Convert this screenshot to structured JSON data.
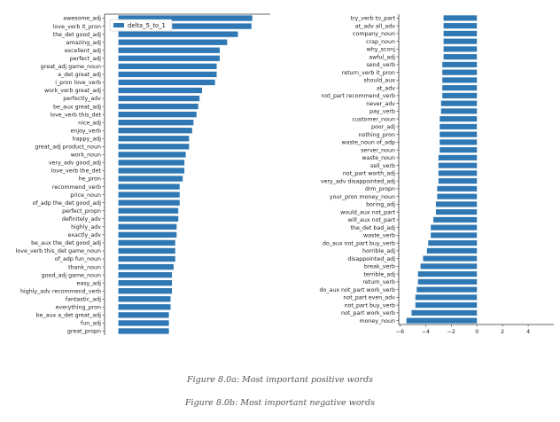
{
  "captions": {
    "a": "Figure 8.0a: Most important positive words",
    "b": "Figure 8.0b: Most important negative words"
  },
  "colors": {
    "bar": "#2f78b4",
    "axis": "#333333",
    "text": "#222222"
  },
  "chart_data": [
    {
      "type": "bar",
      "orientation": "horizontal",
      "legend": {
        "entries": [
          "delta_5_to_1"
        ],
        "placement": "top-left"
      },
      "categories": [
        "awesome_adj",
        "love_verb it_pron",
        "the_det good_adj",
        "amazing_adj",
        "excellent_adj",
        "perfect_adj",
        "great_adj game_noun",
        "a_det great_adj",
        "i_pron love_verb",
        "work_verb great_adj",
        "perfectly_adv",
        "be_aux great_adj",
        "love_verb this_det",
        "nice_adj",
        "enjoy_verb",
        "happy_adj",
        "great_adj product_noun",
        "work_noun",
        "very_adv good_adj",
        "love_verb the_det",
        "he_pron",
        "recommend_verb",
        "price_noun",
        "of_adp the_det good_adj",
        "perfect_propn",
        "definitely_adv",
        "highly_adv",
        "exactly_adv",
        "be_aux the_det good_adj",
        "love_verb this_det game_noun",
        "of_adp fun_noun",
        "thank_noun",
        "good_adj game_noun",
        "easy_adj",
        "highly_adv recommend_verb",
        "fantastic_adj",
        "everything_pron",
        "be_aux a_det great_adj",
        "fun_adj",
        "great_propn"
      ],
      "values": [
        4.85,
        4.82,
        4.33,
        3.94,
        3.67,
        3.67,
        3.56,
        3.56,
        3.5,
        3.03,
        2.94,
        2.89,
        2.83,
        2.72,
        2.67,
        2.56,
        2.56,
        2.44,
        2.39,
        2.39,
        2.33,
        2.22,
        2.22,
        2.22,
        2.17,
        2.17,
        2.11,
        2.11,
        2.06,
        2.06,
        2.06,
        2.0,
        1.94,
        1.94,
        1.94,
        1.89,
        1.89,
        1.83,
        1.83,
        1.83
      ],
      "xlim": [
        -0.5,
        5.5
      ]
    },
    {
      "type": "bar",
      "orientation": "horizontal",
      "categories": [
        "try_verb to_part",
        "at_adv all_adv",
        "company_noun",
        "crap_noun",
        "why_sconj",
        "awful_adj",
        "send_verb",
        "return_verb it_pron",
        "should_aux",
        "at_adv",
        "not_part recommend_verb",
        "never_adv",
        "pay_verb",
        "customer_noun",
        "poor_adj",
        "nothing_pron",
        "waste_noun of_adp",
        "server_noun",
        "waste_noun",
        "sell_verb",
        "not_part worth_adj",
        "very_adv disappointed_adj",
        "drm_propn",
        "your_pron money_noun",
        "boring_adj",
        "would_aux not_part",
        "will_aux not_part",
        "the_det bad_adj",
        "waste_verb",
        "do_aux not_part buy_verb",
        "horrible_adj",
        "disappointed_adj",
        "break_verb",
        "terrible_adj",
        "return_verb",
        "do_aux not_part work_verb",
        "not_part even_adv",
        "not_part buy_verb",
        "not_part work_verb",
        "money_noun"
      ],
      "values": [
        -2.6,
        -2.6,
        -2.6,
        -2.6,
        -2.6,
        -2.6,
        -2.7,
        -2.7,
        -2.7,
        -2.7,
        -2.7,
        -2.8,
        -2.8,
        -2.9,
        -2.9,
        -2.9,
        -2.9,
        -2.9,
        -3.0,
        -3.0,
        -3.0,
        -3.0,
        -3.1,
        -3.1,
        -3.2,
        -3.2,
        -3.4,
        -3.6,
        -3.6,
        -3.8,
        -3.9,
        -4.2,
        -4.4,
        -4.6,
        -4.6,
        -4.7,
        -4.8,
        -4.8,
        -5.1,
        -5.5
      ],
      "xticks": [
        -6,
        -4,
        -2,
        0,
        2,
        4
      ],
      "xlim": [
        -6.1,
        6.0
      ]
    }
  ]
}
